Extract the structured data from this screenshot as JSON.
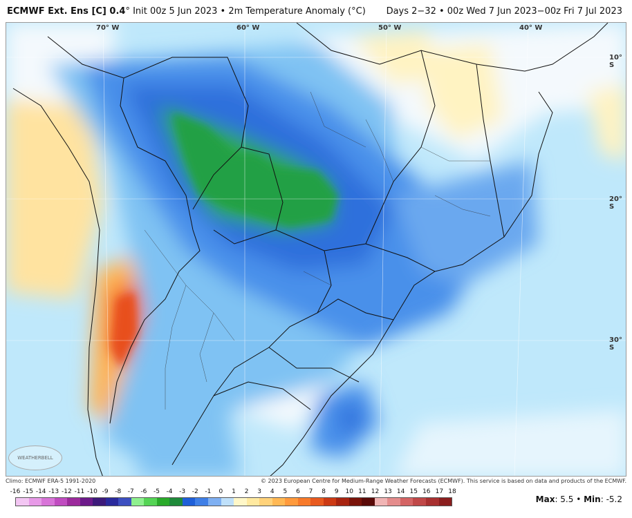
{
  "header": {
    "title_bold": "ECMWF Ext.  Ens [C] 0.4",
    "title_rest": "°  Init 00z 5 Jun 2023 • 2m Temperature Anomaly (°C)",
    "period": "Days 2−32 • 00z Wed 7 Jun 2023−00z Fri 7 Jul 2023"
  },
  "axis_labels": {
    "lon": [
      "70° W",
      "60° W",
      "50° W",
      "40° W"
    ],
    "lat": [
      "10° S",
      "20° S",
      "30° S"
    ]
  },
  "credits": {
    "climo": "Climo: ECMWF ERA-5 1991-2020",
    "copyright": "© 2023 European Centre for Medium-Range Weather Forecasts (ECMWF). This service is based on data and products of the ECMWF."
  },
  "colorbar": {
    "ticks": [
      "-16",
      "-15",
      "-14",
      "-13",
      "-12",
      "-11",
      "-10",
      "-9",
      "-8",
      "-7",
      "-6",
      "-5",
      "-4",
      "-3",
      "-2",
      "-1",
      "0",
      "1",
      "2",
      "3",
      "4",
      "5",
      "6",
      "7",
      "8",
      "9",
      "10",
      "11",
      "12",
      "13",
      "14",
      "15",
      "16",
      "17",
      "18"
    ],
    "colors": [
      "#f3c6f3",
      "#e79ae7",
      "#d874d8",
      "#c04cc0",
      "#9c2a9c",
      "#6d1a8a",
      "#3d1a7a",
      "#2a2a9c",
      "#3d4fc0",
      "#8ff08f",
      "#55d455",
      "#2aaa2a",
      "#1f8a3a",
      "#1f5fd8",
      "#3f7fe6",
      "#7fb0f2",
      "#bfe0fa",
      "#fff7c8",
      "#ffe9a0",
      "#ffd27a",
      "#ffb854",
      "#ff9a3c",
      "#f77a2a",
      "#e85a1f",
      "#cc3a14",
      "#a82410",
      "#7a140a",
      "#5a0a08",
      "#f0b4b4",
      "#e48c8c",
      "#d46464",
      "#c04848",
      "#a83030",
      "#8a1e1e"
    ],
    "max_label": "Max",
    "max_value": "5.5",
    "min_label": "Min",
    "min_value": "-5.2"
  },
  "logo_text": "WEATHERBELL"
}
